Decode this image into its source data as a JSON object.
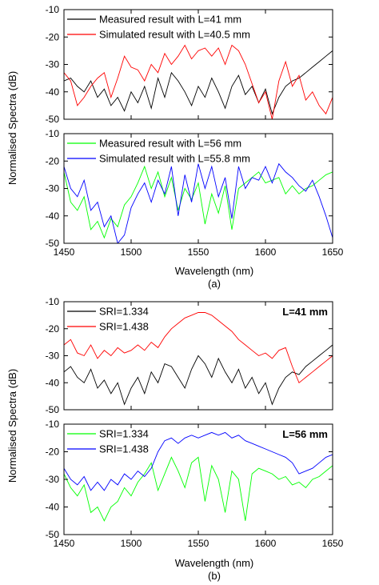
{
  "figure": {
    "ylabel": "Normalised Spectra (dB)",
    "xlabel": "Wavelength (nm)",
    "caption_a": "(a)",
    "caption_b": "(b)"
  },
  "chart_data": [
    {
      "type": "line",
      "xlim": [
        1450,
        1650
      ],
      "ylim": [
        -50,
        -10
      ],
      "x_ticks": [
        1450,
        1500,
        1550,
        1600,
        1650
      ],
      "y_ticks": [
        -10,
        -20,
        -30,
        -40,
        -50
      ],
      "legend": "top-left",
      "series": [
        {
          "name": "Measured result with L=41 mm",
          "color": "#000000",
          "x": [
            1450,
            1455,
            1460,
            1465,
            1470,
            1475,
            1480,
            1485,
            1490,
            1495,
            1500,
            1505,
            1510,
            1515,
            1520,
            1525,
            1530,
            1535,
            1540,
            1545,
            1550,
            1555,
            1560,
            1565,
            1570,
            1575,
            1580,
            1585,
            1590,
            1595,
            1600,
            1605,
            1610,
            1615,
            1620,
            1625,
            1630,
            1635,
            1640,
            1645,
            1650
          ],
          "y": [
            -36,
            -35,
            -38,
            -40,
            -36,
            -42,
            -39,
            -45,
            -42,
            -47,
            -40,
            -44,
            -38,
            -46,
            -35,
            -42,
            -33,
            -36,
            -40,
            -45,
            -38,
            -42,
            -35,
            -40,
            -46,
            -38,
            -34,
            -41,
            -38,
            -44,
            -39,
            -48,
            -42,
            -38,
            -36,
            -35,
            -33,
            -31,
            -29,
            -27,
            -25
          ]
        },
        {
          "name": "Simulated result with L=40.5 mm",
          "color": "#ff0000",
          "x": [
            1450,
            1455,
            1460,
            1465,
            1470,
            1475,
            1480,
            1485,
            1490,
            1495,
            1500,
            1505,
            1510,
            1515,
            1520,
            1525,
            1530,
            1535,
            1540,
            1545,
            1550,
            1555,
            1560,
            1565,
            1570,
            1575,
            1580,
            1585,
            1590,
            1595,
            1600,
            1605,
            1610,
            1615,
            1620,
            1625,
            1630,
            1635,
            1640,
            1645,
            1650
          ],
          "y": [
            -33,
            -36,
            -45,
            -42,
            -38,
            -35,
            -33,
            -42,
            -35,
            -27,
            -31,
            -32,
            -36,
            -30,
            -33,
            -26,
            -30,
            -27,
            -23,
            -28,
            -25,
            -24,
            -27,
            -24,
            -30,
            -23,
            -25,
            -30,
            -37,
            -44,
            -40,
            -50,
            -36,
            -29,
            -38,
            -34,
            -43,
            -40,
            -45,
            -48,
            -42
          ]
        }
      ]
    },
    {
      "type": "line",
      "xlim": [
        1450,
        1650
      ],
      "ylim": [
        -50,
        -10
      ],
      "x_ticks": [
        1450,
        1500,
        1550,
        1600,
        1650
      ],
      "y_ticks": [
        -10,
        -20,
        -30,
        -40,
        -50
      ],
      "legend": "top-left",
      "series": [
        {
          "name": "Measured result with L=56 mm",
          "color": "#00ff00",
          "x": [
            1450,
            1455,
            1460,
            1465,
            1470,
            1475,
            1480,
            1485,
            1490,
            1495,
            1500,
            1505,
            1510,
            1515,
            1520,
            1525,
            1530,
            1535,
            1540,
            1545,
            1550,
            1555,
            1560,
            1565,
            1570,
            1575,
            1580,
            1585,
            1590,
            1595,
            1600,
            1605,
            1610,
            1615,
            1620,
            1625,
            1630,
            1635,
            1640,
            1645,
            1650
          ],
          "y": [
            -24,
            -35,
            -38,
            -33,
            -45,
            -42,
            -48,
            -41,
            -44,
            -36,
            -33,
            -28,
            -22,
            -30,
            -24,
            -33,
            -26,
            -38,
            -30,
            -34,
            -28,
            -43,
            -32,
            -39,
            -29,
            -45,
            -30,
            -28,
            -26,
            -24,
            -28,
            -27,
            -26,
            -32,
            -29,
            -32,
            -30,
            -29,
            -27,
            -25,
            -24
          ]
        },
        {
          "name": "Simulated result with L=55.8 mm",
          "color": "#0000ff",
          "x": [
            1450,
            1455,
            1460,
            1465,
            1470,
            1475,
            1480,
            1485,
            1490,
            1495,
            1500,
            1505,
            1510,
            1515,
            1520,
            1525,
            1530,
            1535,
            1540,
            1545,
            1550,
            1555,
            1560,
            1565,
            1570,
            1575,
            1580,
            1585,
            1590,
            1595,
            1600,
            1605,
            1610,
            1615,
            1620,
            1625,
            1630,
            1635,
            1640,
            1645,
            1650
          ],
          "y": [
            -22,
            -30,
            -33,
            -27,
            -38,
            -35,
            -44,
            -40,
            -50,
            -47,
            -37,
            -32,
            -28,
            -35,
            -27,
            -32,
            -22,
            -40,
            -25,
            -35,
            -21,
            -30,
            -22,
            -33,
            -26,
            -41,
            -22,
            -30,
            -26,
            -27,
            -22,
            -28,
            -21,
            -24,
            -26,
            -29,
            -31,
            -27,
            -33,
            -40,
            -48
          ]
        }
      ]
    },
    {
      "type": "line",
      "xlim": [
        1450,
        1650
      ],
      "ylim": [
        -50,
        -10
      ],
      "x_ticks": [
        1450,
        1500,
        1550,
        1600,
        1650
      ],
      "y_ticks": [
        -10,
        -20,
        -30,
        -40,
        -50
      ],
      "legend": "top-left",
      "annotation": "L=41 mm",
      "series": [
        {
          "name": "SRI=1.334",
          "color": "#000000",
          "x": [
            1450,
            1455,
            1460,
            1465,
            1470,
            1475,
            1480,
            1485,
            1490,
            1495,
            1500,
            1505,
            1510,
            1515,
            1520,
            1525,
            1530,
            1535,
            1540,
            1545,
            1550,
            1555,
            1560,
            1565,
            1570,
            1575,
            1580,
            1585,
            1590,
            1595,
            1600,
            1605,
            1610,
            1615,
            1620,
            1625,
            1630,
            1635,
            1640,
            1645,
            1650
          ],
          "y": [
            -36,
            -34,
            -38,
            -40,
            -35,
            -42,
            -39,
            -44,
            -40,
            -48,
            -42,
            -38,
            -44,
            -36,
            -40,
            -33,
            -34,
            -38,
            -42,
            -35,
            -30,
            -33,
            -38,
            -31,
            -36,
            -40,
            -35,
            -42,
            -38,
            -44,
            -40,
            -48,
            -42,
            -38,
            -36,
            -37,
            -34,
            -32,
            -30,
            -28,
            -26
          ]
        },
        {
          "name": "SRI=1.438",
          "color": "#ff0000",
          "x": [
            1450,
            1455,
            1460,
            1465,
            1470,
            1475,
            1480,
            1485,
            1490,
            1495,
            1500,
            1505,
            1510,
            1515,
            1520,
            1525,
            1530,
            1535,
            1540,
            1545,
            1550,
            1555,
            1560,
            1565,
            1570,
            1575,
            1580,
            1585,
            1590,
            1595,
            1600,
            1605,
            1610,
            1615,
            1620,
            1625,
            1630,
            1635,
            1640,
            1645,
            1650
          ],
          "y": [
            -26,
            -24,
            -29,
            -30,
            -26,
            -31,
            -28,
            -30,
            -27,
            -29,
            -28,
            -26,
            -28,
            -25,
            -27,
            -23,
            -20,
            -18,
            -16,
            -15,
            -14,
            -14,
            -15,
            -17,
            -19,
            -21,
            -24,
            -26,
            -28,
            -30,
            -29,
            -31,
            -28,
            -27,
            -34,
            -40,
            -38,
            -36,
            -34,
            -32,
            -30
          ]
        }
      ]
    },
    {
      "type": "line",
      "xlim": [
        1450,
        1650
      ],
      "ylim": [
        -50,
        -10
      ],
      "x_ticks": [
        1450,
        1500,
        1550,
        1600,
        1650
      ],
      "y_ticks": [
        -10,
        -20,
        -30,
        -40,
        -50
      ],
      "legend": "top-left",
      "annotation": "L=56 mm",
      "series": [
        {
          "name": "SRI=1.334",
          "color": "#00ff00",
          "x": [
            1450,
            1455,
            1460,
            1465,
            1470,
            1475,
            1480,
            1485,
            1490,
            1495,
            1500,
            1505,
            1510,
            1515,
            1520,
            1525,
            1530,
            1535,
            1540,
            1545,
            1550,
            1555,
            1560,
            1565,
            1570,
            1575,
            1580,
            1585,
            1590,
            1595,
            1600,
            1605,
            1610,
            1615,
            1620,
            1625,
            1630,
            1635,
            1640,
            1645,
            1650
          ],
          "y": [
            -28,
            -33,
            -36,
            -32,
            -42,
            -40,
            -45,
            -40,
            -38,
            -33,
            -36,
            -31,
            -28,
            -24,
            -34,
            -28,
            -22,
            -27,
            -33,
            -24,
            -22,
            -38,
            -25,
            -30,
            -42,
            -27,
            -30,
            -45,
            -28,
            -26,
            -27,
            -28,
            -30,
            -29,
            -32,
            -31,
            -33,
            -30,
            -29,
            -27,
            -25
          ]
        },
        {
          "name": "SRI=1.438",
          "color": "#0000ff",
          "x": [
            1450,
            1455,
            1460,
            1465,
            1470,
            1475,
            1480,
            1485,
            1490,
            1495,
            1500,
            1505,
            1510,
            1515,
            1520,
            1525,
            1530,
            1535,
            1540,
            1545,
            1550,
            1555,
            1560,
            1565,
            1570,
            1575,
            1580,
            1585,
            1590,
            1595,
            1600,
            1605,
            1610,
            1615,
            1620,
            1625,
            1630,
            1635,
            1640,
            1645,
            1650
          ],
          "y": [
            -26,
            -30,
            -32,
            -29,
            -34,
            -31,
            -34,
            -30,
            -32,
            -28,
            -30,
            -27,
            -29,
            -26,
            -20,
            -16,
            -15,
            -17,
            -15,
            -14,
            -15,
            -14,
            -13,
            -14,
            -13,
            -15,
            -14,
            -16,
            -17,
            -18,
            -19,
            -20,
            -21,
            -22,
            -24,
            -28,
            -27,
            -26,
            -24,
            -22,
            -21
          ]
        }
      ]
    }
  ]
}
